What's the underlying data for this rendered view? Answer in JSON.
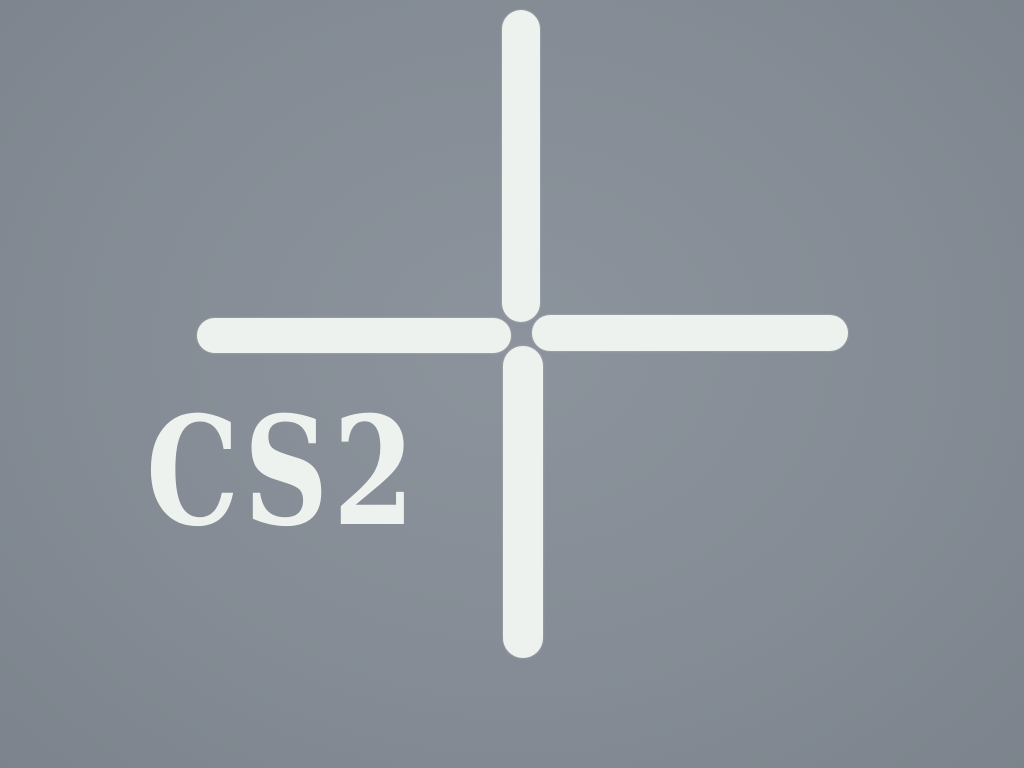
{
  "scene": {
    "marking_text": "CS2",
    "background_color": "#858c95",
    "marking_color": "#eef2ee"
  }
}
